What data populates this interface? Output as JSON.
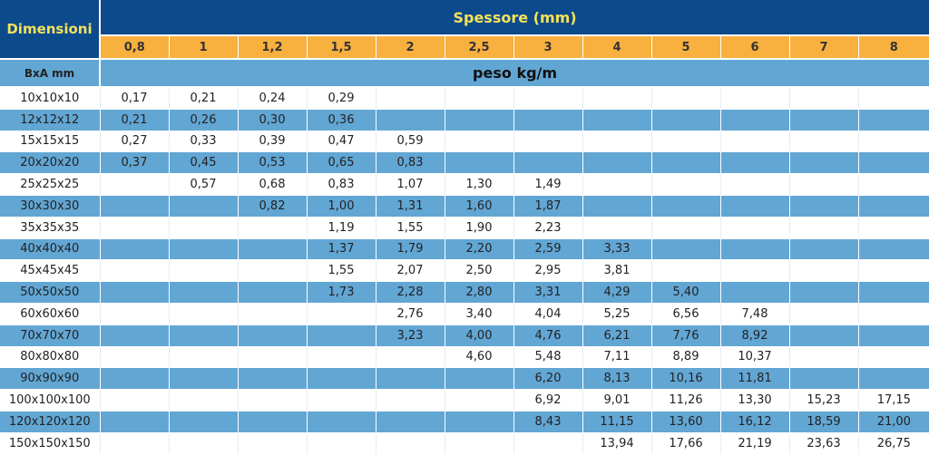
{
  "header": {
    "dimensioni": "Dimensioni",
    "spessore": "Spessore (mm)",
    "bxa": "BxA mm",
    "peso": "peso kg/m"
  },
  "colors": {
    "header_blue": "#0c4a8c",
    "header_yellow_text": "#f5e15a",
    "thickness_orange": "#f8b03e",
    "row_blue": "#62a6d4"
  },
  "thicknesses": [
    "0,8",
    "1",
    "1,2",
    "1,5",
    "2",
    "2,5",
    "3",
    "4",
    "5",
    "6",
    "7",
    "8"
  ],
  "rows": [
    {
      "dim": "10x10x10",
      "values": [
        "0,17",
        "0,21",
        "0,24",
        "0,29",
        "",
        "",
        "",
        "",
        "",
        "",
        "",
        ""
      ]
    },
    {
      "dim": "12x12x12",
      "values": [
        "0,21",
        "0,26",
        "0,30",
        "0,36",
        "",
        "",
        "",
        "",
        "",
        "",
        "",
        ""
      ]
    },
    {
      "dim": "15x15x15",
      "values": [
        "0,27",
        "0,33",
        "0,39",
        "0,47",
        "0,59",
        "",
        "",
        "",
        "",
        "",
        "",
        ""
      ]
    },
    {
      "dim": "20x20x20",
      "values": [
        "0,37",
        "0,45",
        "0,53",
        "0,65",
        "0,83",
        "",
        "",
        "",
        "",
        "",
        "",
        ""
      ]
    },
    {
      "dim": "25x25x25",
      "values": [
        "",
        "0,57",
        "0,68",
        "0,83",
        "1,07",
        "1,30",
        "1,49",
        "",
        "",
        "",
        "",
        ""
      ]
    },
    {
      "dim": "30x30x30",
      "values": [
        "",
        "",
        "0,82",
        "1,00",
        "1,31",
        "1,60",
        "1,87",
        "",
        "",
        "",
        "",
        ""
      ]
    },
    {
      "dim": "35x35x35",
      "values": [
        "",
        "",
        "",
        "1,19",
        "1,55",
        "1,90",
        "2,23",
        "",
        "",
        "",
        "",
        ""
      ]
    },
    {
      "dim": "40x40x40",
      "values": [
        "",
        "",
        "",
        "1,37",
        "1,79",
        "2,20",
        "2,59",
        "3,33",
        "",
        "",
        "",
        ""
      ]
    },
    {
      "dim": "45x45x45",
      "values": [
        "",
        "",
        "",
        "1,55",
        "2,07",
        "2,50",
        "2,95",
        "3,81",
        "",
        "",
        "",
        ""
      ]
    },
    {
      "dim": "50x50x50",
      "values": [
        "",
        "",
        "",
        "1,73",
        "2,28",
        "2,80",
        "3,31",
        "4,29",
        "5,40",
        "",
        "",
        ""
      ]
    },
    {
      "dim": "60x60x60",
      "values": [
        "",
        "",
        "",
        "",
        "2,76",
        "3,40",
        "4,04",
        "5,25",
        "6,56",
        "7,48",
        "",
        ""
      ]
    },
    {
      "dim": "70x70x70",
      "values": [
        "",
        "",
        "",
        "",
        "3,23",
        "4,00",
        "4,76",
        "6,21",
        "7,76",
        "8,92",
        "",
        ""
      ]
    },
    {
      "dim": "80x80x80",
      "values": [
        "",
        "",
        "",
        "",
        "",
        "4,60",
        "5,48",
        "7,11",
        "8,89",
        "10,37",
        "",
        ""
      ]
    },
    {
      "dim": "90x90x90",
      "values": [
        "",
        "",
        "",
        "",
        "",
        "",
        "6,20",
        "8,13",
        "10,16",
        "11,81",
        "",
        ""
      ]
    },
    {
      "dim": "100x100x100",
      "values": [
        "",
        "",
        "",
        "",
        "",
        "",
        "6,92",
        "9,01",
        "11,26",
        "13,30",
        "15,23",
        "17,15"
      ]
    },
    {
      "dim": "120x120x120",
      "values": [
        "",
        "",
        "",
        "",
        "",
        "",
        "8,43",
        "11,15",
        "13,60",
        "16,12",
        "18,59",
        "21,00"
      ]
    },
    {
      "dim": "150x150x150",
      "values": [
        "",
        "",
        "",
        "",
        "",
        "",
        "",
        "13,94",
        "17,66",
        "21,19",
        "23,63",
        "26,75"
      ]
    }
  ]
}
